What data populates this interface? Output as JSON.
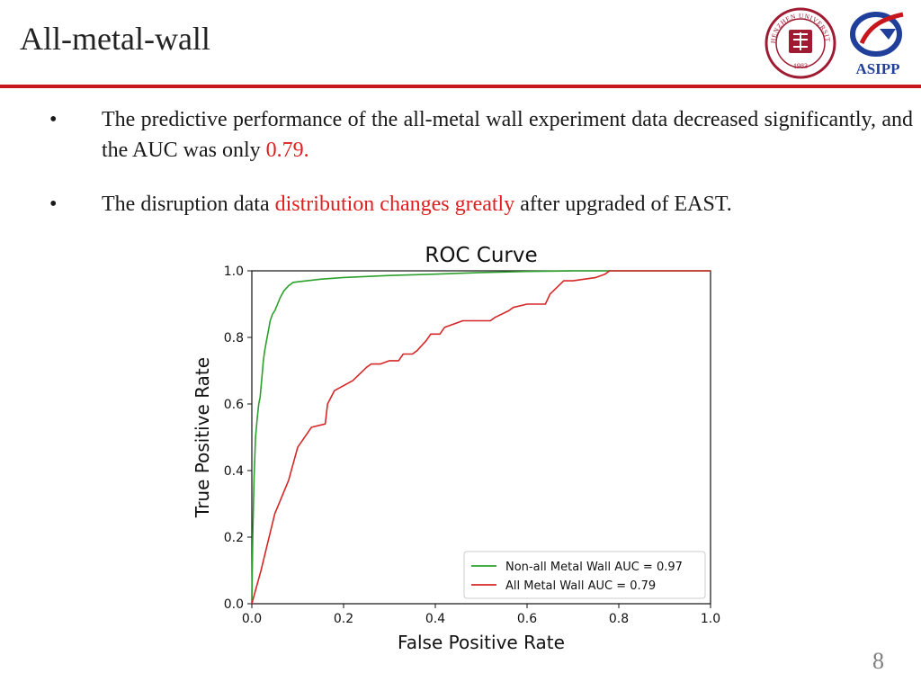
{
  "slide": {
    "title": "All-metal-wall",
    "page_number": "8",
    "accent_color": "#c8161d"
  },
  "logos": {
    "szu": {
      "icon": "szu-seal-icon",
      "text": "SHENZHEN UNIVERSITY",
      "year": "1983",
      "color": "#9e1b32"
    },
    "asipp": {
      "icon": "asipp-logo-icon",
      "text": "ASIPP",
      "color": "#1f3f9a"
    }
  },
  "bullets": [
    {
      "marker": "•",
      "text_before": "The predictive performance of the all-metal wall experiment data decreased significantly, and the AUC was only ",
      "highlight": "0.79.",
      "text_after": ""
    },
    {
      "marker": "•",
      "text_before": "The disruption data ",
      "highlight": "distribution changes greatly",
      "text_after": " after upgraded of EAST."
    }
  ],
  "chart_data": {
    "type": "line",
    "title": "ROC Curve",
    "xlabel": "False Positive Rate",
    "ylabel": "True Positive Rate",
    "xlim": [
      0.0,
      1.0
    ],
    "ylim": [
      0.0,
      1.0
    ],
    "xticks": [
      "0.0",
      "0.2",
      "0.4",
      "0.6",
      "0.8",
      "1.0"
    ],
    "yticks": [
      "0.0",
      "0.2",
      "0.4",
      "0.6",
      "0.8",
      "1.0"
    ],
    "legend_position": "lower-right",
    "series": [
      {
        "name": "Non-all Metal Wall AUC = 0.97",
        "color": "#2ca02c",
        "x": [
          0,
          0.002,
          0.005,
          0.008,
          0.012,
          0.015,
          0.018,
          0.022,
          0.025,
          0.028,
          0.032,
          0.036,
          0.04,
          0.045,
          0.05,
          0.056,
          0.062,
          0.07,
          0.08,
          0.09,
          0.1,
          0.12,
          0.15,
          0.2,
          0.25,
          0.3,
          0.4,
          0.5,
          0.6,
          0.7,
          0.8,
          0.9,
          1.0
        ],
        "y": [
          0,
          0.2,
          0.38,
          0.5,
          0.56,
          0.6,
          0.62,
          0.68,
          0.73,
          0.76,
          0.79,
          0.82,
          0.85,
          0.87,
          0.88,
          0.9,
          0.92,
          0.94,
          0.955,
          0.965,
          0.967,
          0.97,
          0.975,
          0.98,
          0.983,
          0.986,
          0.99,
          0.995,
          0.998,
          1.0,
          1.0,
          1.0,
          1.0
        ]
      },
      {
        "name": "All Metal Wall AUC = 0.79",
        "color": "#d62728",
        "x": [
          0,
          0.02,
          0.05,
          0.08,
          0.1,
          0.12,
          0.13,
          0.16,
          0.165,
          0.18,
          0.22,
          0.25,
          0.26,
          0.28,
          0.3,
          0.32,
          0.33,
          0.35,
          0.36,
          0.38,
          0.39,
          0.41,
          0.42,
          0.46,
          0.5,
          0.52,
          0.53,
          0.56,
          0.57,
          0.6,
          0.64,
          0.65,
          0.68,
          0.7,
          0.75,
          0.77,
          0.78,
          0.8,
          1.0
        ],
        "y": [
          0,
          0.1,
          0.27,
          0.37,
          0.47,
          0.51,
          0.53,
          0.54,
          0.6,
          0.64,
          0.67,
          0.71,
          0.72,
          0.72,
          0.73,
          0.73,
          0.75,
          0.75,
          0.76,
          0.79,
          0.81,
          0.81,
          0.83,
          0.85,
          0.85,
          0.85,
          0.86,
          0.88,
          0.89,
          0.9,
          0.9,
          0.93,
          0.97,
          0.97,
          0.98,
          0.99,
          1.0,
          1.0,
          1.0
        ]
      }
    ]
  }
}
